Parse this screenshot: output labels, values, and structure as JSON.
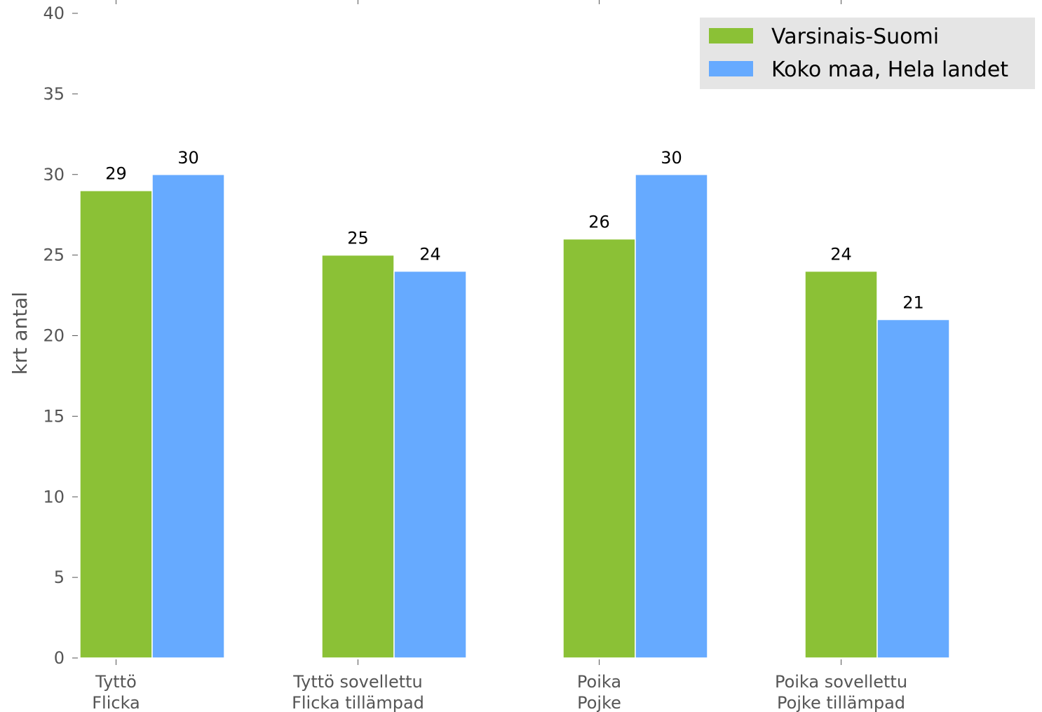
{
  "chart_data": {
    "type": "bar",
    "title": "",
    "xlabel": "",
    "ylabel": "krt antal",
    "ylim": [
      0,
      40
    ],
    "yticks": [
      0,
      5,
      10,
      15,
      20,
      25,
      30,
      35,
      40
    ],
    "grid": false,
    "legend_position": "top-right",
    "categories": [
      [
        "Tyttö",
        "Flicka"
      ],
      [
        "Tyttö sovellettu",
        "Flicka tillämpad"
      ],
      [
        "Poika",
        "Pojke"
      ],
      [
        "Poika sovellettu",
        "Pojke tillämpad"
      ]
    ],
    "series": [
      {
        "name": "Varsinais-Suomi",
        "color": "#8BC136",
        "values": [
          29,
          25,
          26,
          24
        ]
      },
      {
        "name": "Koko maa, Hela landet",
        "color": "#66AAFF",
        "values": [
          30,
          24,
          30,
          21
        ]
      }
    ],
    "colors": {
      "legend_background": "#E5E5E5",
      "tick_label": "#555555",
      "data_label": "#000000"
    }
  }
}
